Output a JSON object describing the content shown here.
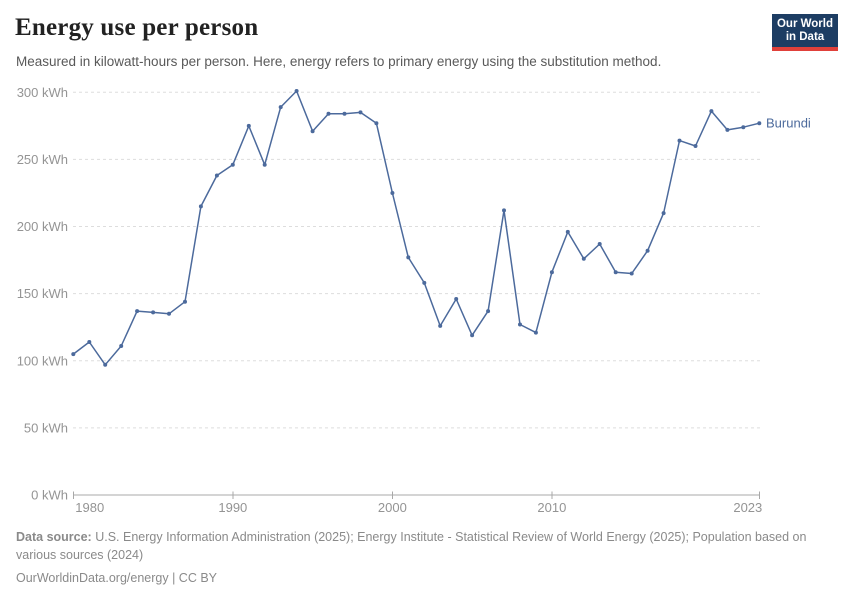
{
  "header": {
    "title": "Energy use per person",
    "subtitle": "Measured in kilowatt-hours per person. Here, energy refers to primary energy using the substitution method.",
    "logo": {
      "line1": "Our World",
      "line2": "in Data"
    }
  },
  "chart_data": {
    "type": "line",
    "title": "Energy use per person",
    "xlabel": "",
    "ylabel": "kilowatt-hours per person",
    "unit": "kWh",
    "grid": true,
    "legend": "end-of-line-label",
    "ylim": [
      0,
      300
    ],
    "x": [
      1980,
      1981,
      1982,
      1983,
      1984,
      1985,
      1986,
      1987,
      1988,
      1989,
      1990,
      1991,
      1992,
      1993,
      1994,
      1995,
      1996,
      1997,
      1998,
      1999,
      2000,
      2001,
      2002,
      2003,
      2004,
      2005,
      2006,
      2007,
      2008,
      2009,
      2010,
      2011,
      2012,
      2013,
      2014,
      2015,
      2016,
      2017,
      2018,
      2019,
      2020,
      2021,
      2022,
      2023
    ],
    "series": [
      {
        "name": "Burundi",
        "values": [
          105,
          114,
          97,
          111,
          137,
          136,
          135,
          144,
          215,
          238,
          246,
          275,
          246,
          289,
          301,
          271,
          284,
          284,
          285,
          277,
          225,
          177,
          158,
          126,
          146,
          119,
          137,
          212,
          127,
          121,
          166,
          196,
          176,
          187,
          166,
          165,
          182,
          210,
          264,
          260,
          286,
          272,
          274,
          277
        ]
      }
    ],
    "yticks": [
      {
        "v": 0,
        "label": "0 kWh"
      },
      {
        "v": 50,
        "label": "50 kWh"
      },
      {
        "v": 100,
        "label": "100 kWh"
      },
      {
        "v": 150,
        "label": "150 kWh"
      },
      {
        "v": 200,
        "label": "200 kWh"
      },
      {
        "v": 250,
        "label": "250 kWh"
      },
      {
        "v": 300,
        "label": "300 kWh"
      }
    ],
    "xticks": [
      {
        "v": 1980,
        "label": "1980",
        "anchor": "start"
      },
      {
        "v": 1990,
        "label": "1990",
        "anchor": "middle"
      },
      {
        "v": 2000,
        "label": "2000",
        "anchor": "middle"
      },
      {
        "v": 2010,
        "label": "2010",
        "anchor": "middle"
      },
      {
        "v": 2023,
        "label": "2023",
        "anchor": "end"
      }
    ]
  },
  "colors": {
    "line": "#4c6a9c",
    "grid": "#dddddd",
    "axis": "#a8a8a8",
    "tick_label": "#949494",
    "title": "#222222",
    "subtitle": "#595959",
    "footer": "#8a8a8a",
    "logo_bg": "#1d3d63",
    "logo_accent": "#e0403a"
  },
  "footer": {
    "source_label": "Data source:",
    "source_text": "U.S. Energy Information Administration (2025); Energy Institute - Statistical Review of World Energy (2025); Population based on various sources (2024)",
    "license_line": "OurWorldinData.org/energy | CC BY"
  }
}
